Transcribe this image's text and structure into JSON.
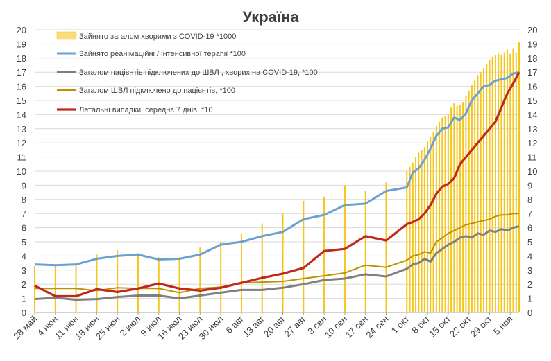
{
  "chart_data": {
    "type": "bar+line",
    "title": "Україна",
    "ylim": [
      0,
      20
    ],
    "y_ticks": [
      0,
      1,
      2,
      3,
      4,
      5,
      6,
      7,
      8,
      9,
      10,
      11,
      12,
      13,
      14,
      15,
      16,
      17,
      18,
      19,
      20
    ],
    "x_tick_labels": [
      "28 май",
      "4 июн",
      "11 июн",
      "18 июн",
      "25 июн",
      "2 июл",
      "9 июл",
      "16 июл",
      "23 июл",
      "30 июл",
      "6 авг",
      "13 авг",
      "20 авг",
      "27 авг",
      "3 сен",
      "10 сен",
      "17 сен",
      "24 сен",
      "1 окт",
      "8 окт",
      "15 окт",
      "22 окт",
      "29 окт",
      "5 ноя"
    ],
    "x_range_days": [
      0,
      164
    ],
    "grid": true,
    "legend_position": "top-left",
    "colors": {
      "bars": "#F5C518",
      "bars_legend_fill": "#FBDB7A",
      "icu": "#6BA0CF",
      "vent_covid": "#7F7F7F",
      "vent_total": "#BF9000",
      "deaths": "#C0281B",
      "grid": "#D9D9D9",
      "axis": "#A6A6A6"
    },
    "bars_series": {
      "name": "Зайнято загалом хворими з COVID-19 *1000",
      "x": [
        0,
        7,
        14,
        21,
        28,
        35,
        42,
        49,
        56,
        63,
        70,
        77,
        84,
        91,
        98,
        105,
        112,
        119,
        126,
        127,
        128,
        129,
        130,
        131,
        132,
        133,
        134,
        135,
        136,
        137,
        138,
        139,
        140,
        141,
        142,
        143,
        144,
        145,
        146,
        147,
        148,
        149,
        150,
        151,
        152,
        153,
        154,
        155,
        156,
        157,
        158,
        159,
        160,
        161,
        162,
        163,
        164
      ],
      "values": [
        3.3,
        3.3,
        3.4,
        4.1,
        4.4,
        4.2,
        3.9,
        3.9,
        4.6,
        5.0,
        5.6,
        6.3,
        7.0,
        7.9,
        8.2,
        9.0,
        8.6,
        9.2,
        10.0,
        10.3,
        10.6,
        11.0,
        11.3,
        11.5,
        11.7,
        12.1,
        12.4,
        12.8,
        13.2,
        13.5,
        13.8,
        13.9,
        14.0,
        14.5,
        14.8,
        14.6,
        14.7,
        14.9,
        15.3,
        15.7,
        16.1,
        16.4,
        16.8,
        17.0,
        17.3,
        17.6,
        17.9,
        18.1,
        18.2,
        18.3,
        18.2,
        18.4,
        18.6,
        18.3,
        18.7,
        18.4,
        19.1
      ]
    },
    "series": [
      {
        "name": "Зайнято реанімаційні / інтенсивної терапії *100",
        "x": [
          0,
          7,
          14,
          21,
          28,
          35,
          42,
          49,
          56,
          63,
          70,
          77,
          84,
          91,
          98,
          105,
          112,
          119,
          126,
          128,
          130,
          132,
          134,
          136,
          138,
          140,
          142,
          144,
          146,
          148,
          150,
          152,
          154,
          156,
          158,
          160,
          162,
          164
        ],
        "values": [
          3.4,
          3.35,
          3.4,
          3.8,
          4.0,
          4.1,
          3.75,
          3.8,
          4.1,
          4.8,
          5.0,
          5.4,
          5.7,
          6.6,
          6.9,
          7.6,
          7.7,
          8.6,
          8.85,
          9.9,
          10.2,
          10.8,
          11.6,
          12.5,
          13.0,
          13.1,
          13.8,
          13.6,
          14.1,
          15.0,
          15.5,
          16.0,
          16.1,
          16.4,
          16.5,
          16.6,
          16.9,
          17.0
        ]
      },
      {
        "name": "Загалом пацієнтів підключених до ШВЛ , хворих на COVID-19, *100",
        "x": [
          0,
          7,
          14,
          21,
          28,
          35,
          42,
          49,
          56,
          63,
          70,
          77,
          84,
          91,
          98,
          105,
          112,
          119,
          126,
          128,
          130,
          132,
          134,
          136,
          138,
          140,
          142,
          144,
          146,
          148,
          150,
          152,
          154,
          156,
          158,
          160,
          162,
          164
        ],
        "values": [
          0.95,
          1.05,
          0.9,
          0.95,
          1.1,
          1.2,
          1.2,
          1.0,
          1.2,
          1.4,
          1.6,
          1.6,
          1.75,
          2.0,
          2.3,
          2.4,
          2.7,
          2.55,
          3.1,
          3.4,
          3.5,
          3.8,
          3.6,
          4.2,
          4.5,
          4.8,
          5.0,
          5.3,
          5.4,
          5.3,
          5.6,
          5.5,
          5.8,
          5.7,
          5.9,
          5.8,
          6.0,
          6.1
        ]
      },
      {
        "name": "Загалом ШВЛ  підключено до пацієнтів, *100",
        "x": [
          0,
          7,
          14,
          21,
          28,
          35,
          42,
          49,
          56,
          63,
          70,
          77,
          84,
          91,
          98,
          105,
          112,
          119,
          126,
          128,
          130,
          132,
          134,
          136,
          138,
          140,
          142,
          144,
          146,
          148,
          150,
          152,
          154,
          156,
          158,
          160,
          162,
          164
        ],
        "values": [
          1.7,
          1.7,
          1.7,
          1.55,
          1.75,
          1.7,
          1.7,
          1.4,
          1.7,
          1.8,
          2.1,
          2.15,
          2.2,
          2.4,
          2.6,
          2.8,
          3.35,
          3.2,
          3.7,
          4.0,
          4.1,
          4.3,
          4.2,
          5.0,
          5.3,
          5.6,
          5.8,
          6.0,
          6.2,
          6.3,
          6.4,
          6.5,
          6.6,
          6.8,
          6.9,
          6.9,
          7.0,
          7.0
        ]
      },
      {
        "name": "Летальні випадки, середнє 7 днів, *10",
        "x": [
          0,
          7,
          14,
          21,
          28,
          35,
          42,
          49,
          56,
          63,
          70,
          77,
          84,
          91,
          98,
          105,
          112,
          119,
          126,
          128,
          130,
          132,
          134,
          136,
          138,
          140,
          142,
          144,
          146,
          148,
          150,
          152,
          154,
          156,
          158,
          160,
          162,
          164
        ],
        "values": [
          1.9,
          1.15,
          1.15,
          1.65,
          1.45,
          1.7,
          2.05,
          1.7,
          1.55,
          1.75,
          2.1,
          2.45,
          2.75,
          3.15,
          4.35,
          4.5,
          5.4,
          5.1,
          6.25,
          6.4,
          6.6,
          7.0,
          7.6,
          8.4,
          8.9,
          9.1,
          9.5,
          10.5,
          11.0,
          11.5,
          12.0,
          12.5,
          13.0,
          13.5,
          14.5,
          15.5,
          16.2,
          17.0
        ]
      }
    ]
  }
}
